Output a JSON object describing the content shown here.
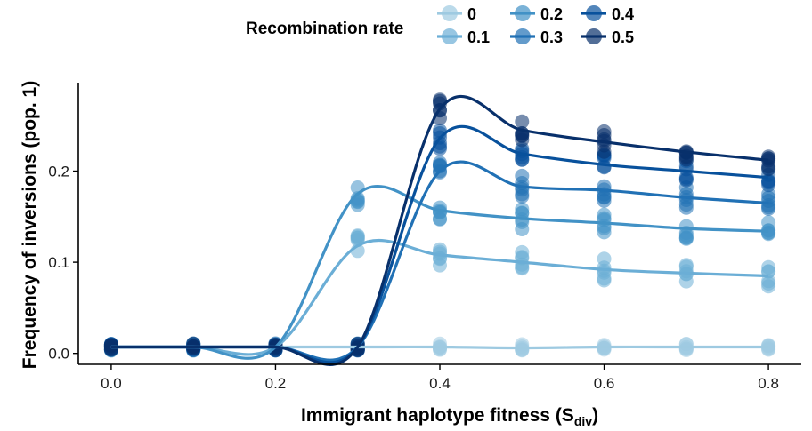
{
  "chart_data": {
    "type": "scatter",
    "xlabel": "Immigrant haplotype fitness (S",
    "xlabel_sub": "div",
    "xlabel_close": ")",
    "ylabel": "Frequency of inversions (pop. 1)",
    "xlim": [
      -0.04,
      0.84
    ],
    "ylim": [
      -0.012,
      0.297
    ],
    "x_ticks": [
      0.0,
      0.2,
      0.4,
      0.6,
      0.8
    ],
    "x_tick_labels": [
      "0.0",
      "0.2",
      "0.4",
      "0.6",
      "0.8"
    ],
    "y_ticks": [
      0.0,
      0.1,
      0.2
    ],
    "y_tick_labels": [
      "0.0",
      "0.1",
      "0.2"
    ],
    "grid": false,
    "legend": {
      "title": "Recombination rate",
      "position": "top"
    },
    "x": [
      0.0,
      0.1,
      0.2,
      0.3,
      0.4,
      0.5,
      0.6,
      0.7,
      0.8
    ],
    "series": [
      {
        "name": "0",
        "color": "#9ecae1",
        "values": [
          0.007,
          0.007,
          0.007,
          0.007,
          0.007,
          0.006,
          0.007,
          0.007,
          0.007
        ]
      },
      {
        "name": "0.1",
        "color": "#6baed6",
        "values": [
          0.007,
          0.007,
          0.007,
          0.118,
          0.108,
          0.1,
          0.092,
          0.088,
          0.085
        ]
      },
      {
        "name": "0.2",
        "color": "#4292c6",
        "values": [
          0.007,
          0.007,
          0.007,
          0.175,
          0.157,
          0.148,
          0.143,
          0.137,
          0.134
        ]
      },
      {
        "name": "0.3",
        "color": "#2171b5",
        "values": [
          0.007,
          0.007,
          0.007,
          0.007,
          0.2,
          0.183,
          0.179,
          0.171,
          0.165
        ]
      },
      {
        "name": "0.4",
        "color": "#08519c",
        "values": [
          0.007,
          0.007,
          0.007,
          0.007,
          0.236,
          0.219,
          0.207,
          0.2,
          0.193
        ]
      },
      {
        "name": "0.5",
        "color": "#08306b",
        "values": [
          0.007,
          0.007,
          0.007,
          0.007,
          0.268,
          0.245,
          0.232,
          0.221,
          0.212
        ]
      }
    ]
  }
}
